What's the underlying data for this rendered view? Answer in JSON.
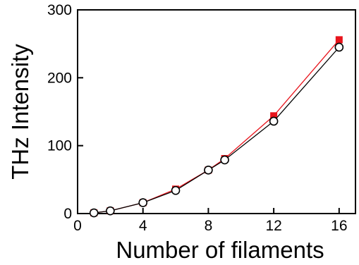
{
  "chart_data": {
    "type": "line",
    "title": "",
    "xlabel": "Number of filaments",
    "ylabel": "THz Intensity",
    "xlim": [
      0,
      17
    ],
    "ylim": [
      0,
      300
    ],
    "xticks": [
      0,
      4,
      8,
      12,
      16
    ],
    "yticks": [
      0,
      100,
      200,
      300
    ],
    "grid": false,
    "legend": "none",
    "series": [
      {
        "marker": "square-filled",
        "color": "#e8141c",
        "x": [
          1,
          2,
          4,
          6,
          8,
          9,
          12,
          16
        ],
        "y": [
          1,
          4,
          16,
          36,
          64,
          81,
          144,
          256
        ]
      },
      {
        "marker": "circle-open",
        "color": "#000000",
        "x": [
          1,
          2,
          4,
          6,
          8,
          9,
          12,
          16
        ],
        "y": [
          1,
          4,
          16,
          34,
          64,
          79,
          136,
          245
        ]
      }
    ]
  }
}
